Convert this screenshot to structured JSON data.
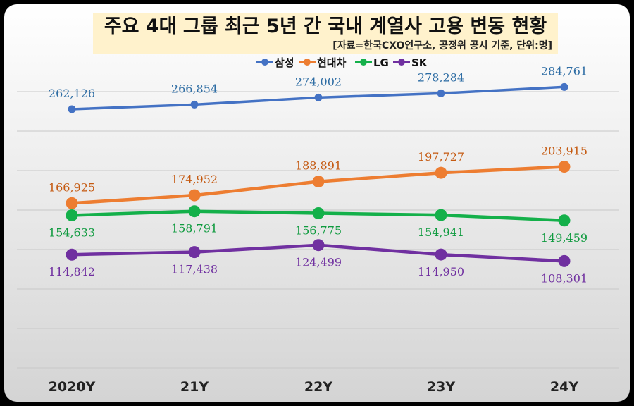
{
  "chart_data": {
    "type": "line",
    "title": "주요 4대 그룹 최근 5년 간 국내 계열사 고용 변동 현황",
    "subtitle": "[자료=한국CXO연구소, 공정위 공시 기준, 단위:명]",
    "categories": [
      "2020Y",
      "21Y",
      "22Y",
      "23Y",
      "24Y"
    ],
    "legend_position": "top",
    "grid": true,
    "ylim": [
      0,
      340000
    ],
    "series": [
      {
        "name": "삼성",
        "color": "#4472C4",
        "values": [
          262126,
          266854,
          274002,
          278284,
          284761
        ],
        "labels": [
          "262,126",
          "266,854",
          "274,002",
          "278,284",
          "284,761"
        ],
        "label_position": "above"
      },
      {
        "name": "현대차",
        "color": "#ED7D31",
        "values": [
          166925,
          174952,
          188891,
          197727,
          203915
        ],
        "labels": [
          "166,925",
          "174,952",
          "188,891",
          "197,727",
          "203,915"
        ],
        "label_position": "above"
      },
      {
        "name": "LG",
        "color": "#14B04A",
        "values": [
          154633,
          158791,
          156775,
          154941,
          149459
        ],
        "labels": [
          "154,633",
          "158,791",
          "156,775",
          "154,941",
          "149,459"
        ],
        "label_position": "below"
      },
      {
        "name": "SK",
        "color": "#7030A0",
        "values": [
          114842,
          117438,
          124499,
          114950,
          108301
        ],
        "labels": [
          "114,842",
          "117,438",
          "124,499",
          "114,950",
          "108,301"
        ],
        "label_position": "below"
      }
    ],
    "label_colors": {
      "삼성": "#2E6DA4",
      "현대차": "#C55A11",
      "LG": "#0E9A3E",
      "SK": "#7030A0"
    }
  }
}
